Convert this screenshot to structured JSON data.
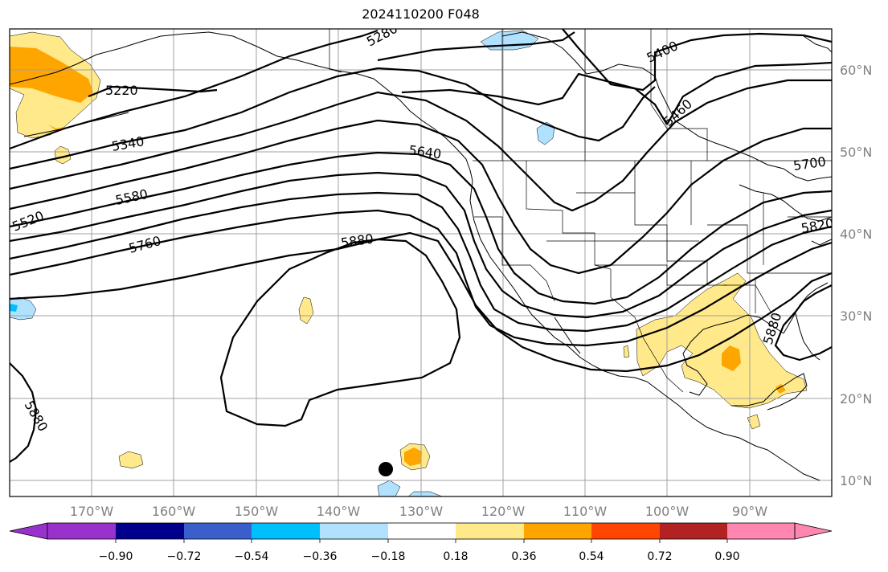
{
  "title": "2024110200 F048",
  "lat_labels": [
    "60°N",
    "50°N",
    "40°N",
    "30°N",
    "20°N",
    "10°N"
  ],
  "lon_labels": [
    "170°W",
    "160°W",
    "150°W",
    "140°W",
    "130°W",
    "120°W",
    "110°W",
    "100°W",
    "90°W"
  ],
  "contour_labels": [
    "5280",
    "5400",
    "5460",
    "5220",
    "5340",
    "5640",
    "5700",
    "5520",
    "5580",
    "5760",
    "5880",
    "5820",
    "5880",
    "5880"
  ],
  "colorbar": {
    "ticks": [
      "−0.90",
      "−0.72",
      "−0.54",
      "−0.36",
      "−0.18",
      "0.18",
      "0.36",
      "0.54",
      "0.72",
      "0.90"
    ],
    "colors": [
      "#9932cc",
      "#00008b",
      "#3a5fcd",
      "#00bfff",
      "#b0e2ff",
      "#ffffff",
      "#ffe98a",
      "#ffa500",
      "#ff4500",
      "#b22222",
      "#ff86b0"
    ]
  },
  "colors": {
    "pos_light": "#ffe98a",
    "pos_mid": "#ffa500",
    "neg_light": "#b0e2ff",
    "neg_mid": "#00bfff"
  }
}
